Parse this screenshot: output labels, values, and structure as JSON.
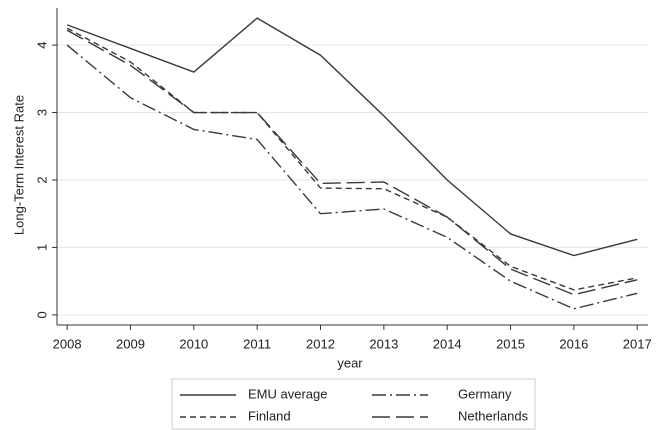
{
  "chart_data": {
    "type": "line",
    "y_label": "Long-Term Interest Rate",
    "x_label": "year",
    "x": [
      2008,
      2009,
      2010,
      2011,
      2012,
      2013,
      2014,
      2015,
      2016,
      2017
    ],
    "series": [
      {
        "name": "EMU average",
        "color": "#3a3a3a",
        "dash": "solid",
        "values": [
          4.3,
          3.95,
          3.6,
          4.4,
          3.85,
          2.95,
          2.0,
          1.2,
          0.88,
          1.12
        ]
      },
      {
        "name": "Finland",
        "color": "#3a3a3a",
        "dash": "dashed",
        "values": [
          4.25,
          3.75,
          3.0,
          3.0,
          1.88,
          1.87,
          1.45,
          0.72,
          0.37,
          0.55
        ]
      },
      {
        "name": "Germany",
        "color": "#3a3a3a",
        "dash": "dashdot",
        "values": [
          4.0,
          3.22,
          2.75,
          2.6,
          1.5,
          1.57,
          1.15,
          0.5,
          0.09,
          0.32
        ]
      },
      {
        "name": "Netherlands",
        "color": "#3a3a3a",
        "dash": "longdash",
        "values": [
          4.22,
          3.7,
          3.0,
          3.0,
          1.95,
          1.97,
          1.45,
          0.68,
          0.3,
          0.52
        ]
      }
    ],
    "xlim": [
      2007.84,
      2017.17
    ],
    "xticks": [
      2008,
      2009,
      2010,
      2011,
      2012,
      2013,
      2014,
      2015,
      2016,
      2017
    ],
    "ylim": [
      -0.15,
      4.55
    ],
    "yticks": [
      0,
      1,
      2,
      3,
      4
    ],
    "grid": true,
    "legend": "bottom"
  }
}
